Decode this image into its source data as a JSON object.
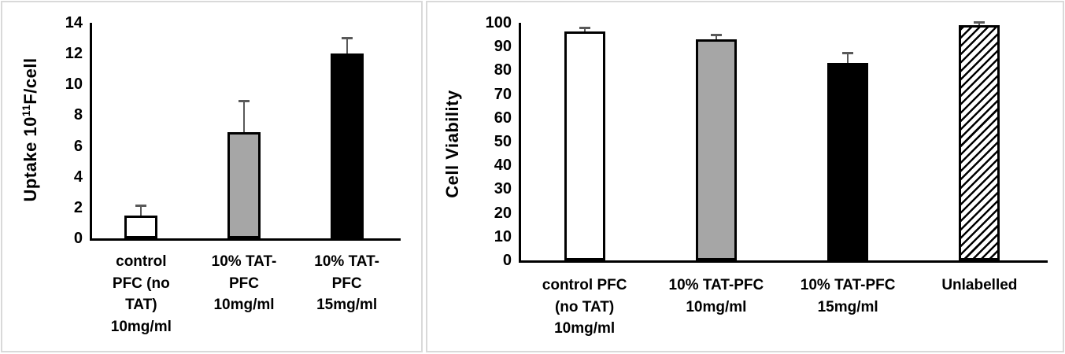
{
  "colors": {
    "bar_white_fill": "#ffffff",
    "bar_gray_fill": "#a6a6a6",
    "bar_black_fill": "#000000",
    "bar_outline": "#000000",
    "error_bar": "#595959",
    "axis": "#000000",
    "panel_border": "#d9d9d9"
  },
  "chart_data": [
    {
      "type": "bar",
      "title": "",
      "ylabel": "Uptake 10¹¹F/cell",
      "ylabel_parts": {
        "prefix": "Uptake 10",
        "superscript": "11",
        "suffix": "F/cell"
      },
      "xlabel": "",
      "ylim": [
        0,
        14
      ],
      "yticks": [
        0,
        2,
        4,
        6,
        8,
        10,
        12,
        14
      ],
      "grid": false,
      "legend": "none",
      "categories": [
        "control\nPFC (no\nTAT)\n10mg/ml",
        "10% TAT-\nPFC\n10mg/ml",
        "10% TAT-\nPFC\n15mg/ml"
      ],
      "values": [
        1.5,
        6.9,
        12.0
      ],
      "errors_plus": [
        0.6,
        2.0,
        1.0
      ],
      "bar_styles": [
        "white",
        "gray",
        "black"
      ]
    },
    {
      "type": "bar",
      "title": "",
      "ylabel": "Cell Viability",
      "ylabel_parts": {
        "prefix": "Cell Viability",
        "superscript": "",
        "suffix": ""
      },
      "xlabel": "",
      "ylim": [
        0,
        100
      ],
      "yticks": [
        0,
        10,
        20,
        30,
        40,
        50,
        60,
        70,
        80,
        90,
        100
      ],
      "grid": false,
      "legend": "none",
      "categories": [
        "control PFC\n(no TAT)\n10mg/ml",
        "10% TAT-PFC\n10mg/ml",
        "10% TAT-PFC\n15mg/ml",
        "Unlabelled"
      ],
      "values": [
        96.5,
        93,
        83,
        99
      ],
      "errors_plus": [
        1.2,
        2,
        4.2,
        1.3
      ],
      "bar_styles": [
        "white",
        "gray",
        "black",
        "hatch"
      ]
    }
  ]
}
